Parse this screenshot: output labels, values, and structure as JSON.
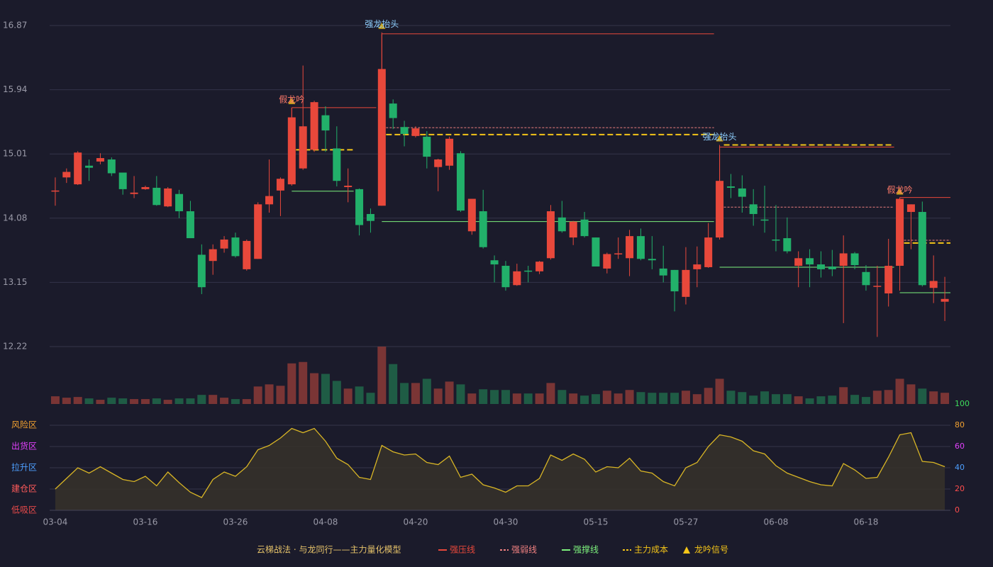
{
  "chart_data": {
    "type": "candlestick",
    "title": "云梯战法 · 与龙同行——主力量化模型",
    "categories": [
      "03-04",
      null,
      null,
      null,
      null,
      null,
      null,
      null,
      "03-16",
      null,
      null,
      null,
      null,
      null,
      null,
      null,
      "03-26",
      null,
      null,
      null,
      null,
      null,
      null,
      null,
      "04-08",
      null,
      null,
      null,
      null,
      null,
      null,
      null,
      "04-20",
      null,
      null,
      null,
      null,
      null,
      null,
      null,
      "04-30",
      null,
      null,
      null,
      null,
      null,
      null,
      null,
      "05-15",
      null,
      null,
      null,
      null,
      null,
      null,
      null,
      "05-27",
      null,
      null,
      null,
      null,
      null,
      null,
      null,
      "06-08",
      null,
      null,
      null,
      null,
      null,
      null,
      null,
      "06-18",
      null,
      null,
      null,
      null,
      null,
      null,
      null
    ],
    "open": [
      14.47,
      14.67,
      14.57,
      14.84,
      14.9,
      14.93,
      14.74,
      14.43,
      14.5,
      14.52,
      14.25,
      14.43,
      14.18,
      13.55,
      13.46,
      13.64,
      13.8,
      13.34,
      13.49,
      14.28,
      14.48,
      14.57,
      14.8,
      15.07,
      15.57,
      15.09,
      14.53,
      14.5,
      14.14,
      14.26,
      15.74,
      15.4,
      15.27,
      15.26,
      14.82,
      14.84,
      15.02,
      13.89,
      14.18,
      13.47,
      13.39,
      13.11,
      13.32,
      13.31,
      13.5,
      14.09,
      13.8,
      14.06,
      13.8,
      13.35,
      13.56,
      13.5,
      13.82,
      13.49,
      13.35,
      13.33,
      12.94,
      13.34,
      13.37,
      13.8,
      14.54,
      14.51,
      14.28,
      14.06,
      13.77,
      13.79,
      13.39,
      13.5,
      13.41,
      13.38,
      13.39,
      13.57,
      13.3,
      13.09,
      12.99,
      13.39,
      14.17,
      14.17,
      13.07,
      12.87
    ],
    "high": [
      14.67,
      14.8,
      15.05,
      14.93,
      15.02,
      14.96,
      14.74,
      14.69,
      14.55,
      14.69,
      14.53,
      14.49,
      14.33,
      13.7,
      13.7,
      13.82,
      13.87,
      13.77,
      14.31,
      14.93,
      14.67,
      15.68,
      16.29,
      15.78,
      15.7,
      15.41,
      14.8,
      14.51,
      14.22,
      16.77,
      15.8,
      15.49,
      15.41,
      15.34,
      14.94,
      15.26,
      15.05,
      14.36,
      14.49,
      13.54,
      13.46,
      13.42,
      13.39,
      13.46,
      14.27,
      14.33,
      14.04,
      14.17,
      13.8,
      13.58,
      13.8,
      13.91,
      13.93,
      13.82,
      13.68,
      13.33,
      13.66,
      13.67,
      14.01,
      15.14,
      14.72,
      14.7,
      14.5,
      14.55,
      14.27,
      14.09,
      13.6,
      13.63,
      13.6,
      13.62,
      13.83,
      13.59,
      13.4,
      13.39,
      13.78,
      14.37,
      14.28,
      14.32,
      13.54,
      13.23
    ],
    "low": [
      14.26,
      14.59,
      14.56,
      14.62,
      14.86,
      14.69,
      14.42,
      14.37,
      14.49,
      14.26,
      14.24,
      14.08,
      13.79,
      12.98,
      13.26,
      13.58,
      13.51,
      13.32,
      13.49,
      14.16,
      14.11,
      14.55,
      14.78,
      15.04,
      15.04,
      14.54,
      14.31,
      13.83,
      13.87,
      14.26,
      15.37,
      15.12,
      15.25,
      14.8,
      14.47,
      14.78,
      14.17,
      13.84,
      13.64,
      13.15,
      13.03,
      13.1,
      13.15,
      13.27,
      13.48,
      13.87,
      13.69,
      13.8,
      13.38,
      13.28,
      13.49,
      13.24,
      13.47,
      13.34,
      13.15,
      12.73,
      12.83,
      13.08,
      13.36,
      13.77,
      14.37,
      14.16,
      13.97,
      13.87,
      13.6,
      13.57,
      13.08,
      13.08,
      13.22,
      13.24,
      12.56,
      13.34,
      13.03,
      12.36,
      12.8,
      13.03,
      13.63,
      13.09,
      12.85,
      12.59
    ],
    "close": [
      14.48,
      14.75,
      15.03,
      14.81,
      14.95,
      14.73,
      14.5,
      14.45,
      14.53,
      14.27,
      14.51,
      14.18,
      13.79,
      13.08,
      13.63,
      13.77,
      13.53,
      13.75,
      14.28,
      14.4,
      14.65,
      15.54,
      15.41,
      15.76,
      15.35,
      14.62,
      14.55,
      13.98,
      14.04,
      16.24,
      15.53,
      15.3,
      15.38,
      14.97,
      14.93,
      15.23,
      14.19,
      14.36,
      13.66,
      13.41,
      13.08,
      13.31,
      13.31,
      13.45,
      14.18,
      13.89,
      14.03,
      13.82,
      13.38,
      13.56,
      13.57,
      13.82,
      13.49,
      13.47,
      13.25,
      13.02,
      13.33,
      13.41,
      13.8,
      14.62,
      14.52,
      14.39,
      14.14,
      14.05,
      13.76,
      13.6,
      13.5,
      13.41,
      13.34,
      13.34,
      13.57,
      13.4,
      13.11,
      13.1,
      13.39,
      14.36,
      14.28,
      13.11,
      13.17,
      12.91
    ],
    "up_color": "#e8483b",
    "down_color": "#22b06a",
    "ylim": [
      12.22,
      16.87
    ],
    "yticks": [
      12.22,
      13.15,
      14.08,
      15.01,
      15.94,
      16.87
    ],
    "grid": true,
    "volume": {
      "values": [
        11,
        9,
        10,
        8,
        6,
        9,
        8,
        7,
        7,
        8,
        6,
        8,
        8,
        13,
        13,
        9,
        7,
        7,
        25,
        28,
        26,
        58,
        60,
        44,
        43,
        33,
        22,
        25,
        16,
        82,
        57,
        30,
        30,
        36,
        22,
        32,
        28,
        15,
        21,
        20,
        20,
        15,
        15,
        15,
        30,
        20,
        15,
        12,
        14,
        19,
        15,
        20,
        17,
        16,
        16,
        16,
        19,
        14,
        23,
        36,
        19,
        17,
        12,
        18,
        14,
        14,
        11,
        8,
        11,
        12,
        24,
        13,
        10,
        19,
        20,
        36,
        28,
        22,
        18,
        16
      ],
      "up_color": "#7a3535",
      "down_color": "#1f5c45"
    },
    "indicator": {
      "color": "#d8b525",
      "fill": "#35312a",
      "values": [
        20,
        30,
        40,
        35,
        41,
        35,
        29,
        27,
        32,
        23,
        36,
        26,
        17,
        12,
        29,
        36,
        32,
        41,
        57,
        61,
        68,
        77,
        73,
        77,
        65,
        49,
        43,
        31,
        29,
        61,
        55,
        52,
        53,
        45,
        43,
        51,
        31,
        34,
        24,
        21,
        17,
        23,
        23,
        30,
        52,
        47,
        53,
        48,
        36,
        41,
        40,
        49,
        37,
        35,
        27,
        23,
        40,
        45,
        60,
        71,
        69,
        65,
        56,
        53,
        42,
        35,
        31,
        27,
        24,
        23,
        44,
        38,
        30,
        31,
        50,
        71,
        73,
        46,
        45,
        41
      ],
      "ylim": [
        0,
        100
      ],
      "yticks": [
        0,
        20,
        40,
        60,
        80,
        100
      ],
      "tick_colors": [
        "#ff4d4d",
        "#ff4d4d",
        "#4d9fff",
        "#e040fb",
        "#f0a030",
        "#3ddc5a"
      ],
      "zones": [
        {
          "value": 0,
          "label": "低吸区",
          "color": "#e84a4a"
        },
        {
          "value": 20,
          "label": "建仓区",
          "color": "#ff5a5a"
        },
        {
          "value": 40,
          "label": "拉升区",
          "color": "#4d9fff"
        },
        {
          "value": 60,
          "label": "出货区",
          "color": "#e040fb"
        },
        {
          "value": 80,
          "label": "风险区",
          "color": "#f0a030"
        }
      ]
    },
    "levels": [
      {
        "name": "强压线",
        "color": "#e8483b",
        "dash": false,
        "segments": [
          {
            "start": 21,
            "end": 28,
            "value": 15.68
          },
          {
            "start": 29,
            "end": 58,
            "value": 16.75
          },
          {
            "start": 59,
            "end": 74,
            "value": 15.11
          },
          {
            "start": 75,
            "end": 79,
            "value": 14.38
          }
        ]
      },
      {
        "name": "强弱线",
        "color": "#f08080",
        "dash": true,
        "segments": [
          {
            "start": 29,
            "end": 58,
            "value": 15.39
          },
          {
            "start": 59,
            "end": 74,
            "value": 14.24
          },
          {
            "start": 75,
            "end": 79,
            "value": 13.76
          }
        ]
      },
      {
        "name": "强撑线",
        "color": "#7cf07c",
        "dash": false,
        "segments": [
          {
            "start": 21,
            "end": 26,
            "value": 14.47
          },
          {
            "start": 29,
            "end": 58,
            "value": 14.03
          },
          {
            "start": 59,
            "end": 74,
            "value": 13.37
          },
          {
            "start": 75,
            "end": 79,
            "value": 13.0
          }
        ]
      },
      {
        "name": "主力成本",
        "color": "#f5c518",
        "dash": true,
        "segments": [
          {
            "start": 21,
            "end": 26,
            "value": 15.07
          },
          {
            "start": 29,
            "end": 58,
            "value": 15.29
          },
          {
            "start": 59,
            "end": 74,
            "value": 15.14
          },
          {
            "start": 75,
            "end": 79,
            "value": 13.72
          }
        ]
      }
    ],
    "annotations": [
      {
        "text": "假龙吟",
        "at": 21,
        "color": "#ff7a6a"
      },
      {
        "text": "强龙抬头",
        "at": 29,
        "color": "#8fd0ff"
      },
      {
        "text": "强龙抬头",
        "at": 59,
        "color": "#8fd0ff"
      },
      {
        "text": "假龙吟",
        "at": 75,
        "color": "#ff7a6a"
      }
    ],
    "signal": {
      "name": "龙吟信号",
      "color": "#f5c518"
    },
    "title_color": "#e6c36a"
  }
}
